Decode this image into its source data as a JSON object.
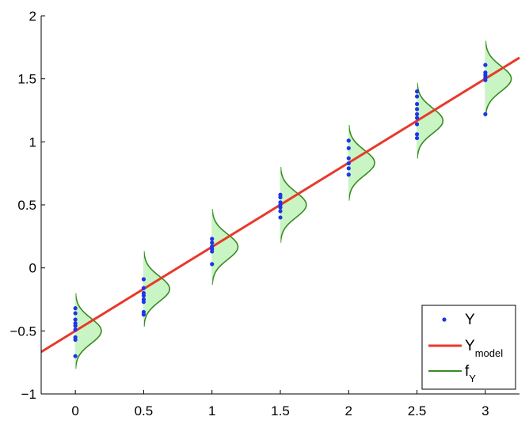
{
  "chart_data": {
    "type": "scatter",
    "xlim": [
      -0.25,
      3.25
    ],
    "ylim": [
      -1,
      2
    ],
    "x_ticks": [
      "0",
      "0.5",
      "1",
      "1.5",
      "2",
      "2.5",
      "3"
    ],
    "y_ticks": [
      "-1",
      "-0.5",
      "0",
      "0.5",
      "1",
      "1.5",
      "2"
    ],
    "grid": false,
    "legend_position": "bottom-right",
    "colors": {
      "points": "#1f35e8",
      "model": "#e8392b",
      "density_line": "#3a8a23",
      "density_fill": "#c8f5c3"
    },
    "series": [
      {
        "name": "Y",
        "kind": "points",
        "groups": [
          {
            "x": 0,
            "y": [
              -0.32,
              -0.36,
              -0.41,
              -0.44,
              -0.46,
              -0.49,
              -0.55,
              -0.57,
              -0.7
            ]
          },
          {
            "x": 0.5,
            "y": [
              -0.09,
              -0.16,
              -0.2,
              -0.22,
              -0.25,
              -0.27,
              -0.35,
              -0.37
            ]
          },
          {
            "x": 1,
            "y": [
              0.23,
              0.2,
              0.17,
              0.15,
              0.13,
              0.03
            ]
          },
          {
            "x": 1.5,
            "y": [
              0.58,
              0.56,
              0.52,
              0.5,
              0.48,
              0.45,
              0.4
            ]
          },
          {
            "x": 2,
            "y": [
              1.01,
              0.95,
              0.87,
              0.83,
              0.79,
              0.74
            ]
          },
          {
            "x": 2.5,
            "y": [
              1.4,
              1.36,
              1.3,
              1.26,
              1.22,
              1.19,
              1.14,
              1.06,
              1.03
            ]
          },
          {
            "x": 3,
            "y": [
              1.61,
              1.55,
              1.53,
              1.51,
              1.49,
              1.22
            ]
          }
        ]
      },
      {
        "name": "Y_model",
        "kind": "line",
        "intercept": -0.5,
        "slope": 0.667
      },
      {
        "name": "f_Y",
        "kind": "density",
        "sigma": 0.1,
        "peak_width_x": 0.19,
        "centers_x": [
          0,
          0.5,
          1,
          1.5,
          2,
          2.5,
          3
        ]
      }
    ],
    "legend": [
      {
        "base": "Y",
        "sub": ""
      },
      {
        "base": "Y",
        "sub": "model"
      },
      {
        "base": "f",
        "sub": "Y"
      }
    ]
  }
}
